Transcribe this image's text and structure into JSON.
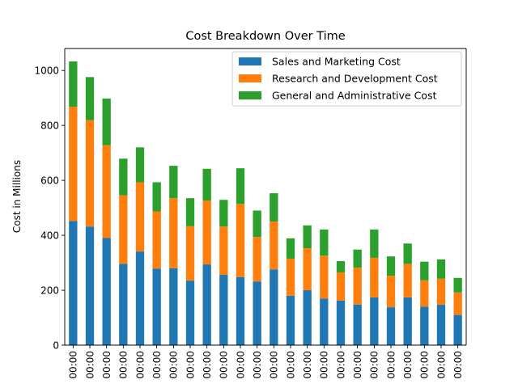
{
  "chart_data": {
    "type": "bar",
    "stacked": true,
    "title": "Cost Breakdown Over Time",
    "xlabel": "",
    "ylabel": "Cost in Millions",
    "ylim": [
      0,
      1080
    ],
    "yticks": [
      0,
      200,
      400,
      600,
      800,
      1000
    ],
    "categories": [
      "00:00",
      "00:00",
      "00:00",
      "00:00",
      "00:00",
      "00:00",
      "00:00",
      "00:00",
      "00:00",
      "00:00",
      "00:00",
      "00:00",
      "00:00",
      "00:00",
      "00:00",
      "00:00",
      "00:00",
      "00:00",
      "00:00",
      "00:00",
      "00:00",
      "00:00",
      "00:00",
      "00:00"
    ],
    "legend_position": "top-right",
    "grid": false,
    "series": [
      {
        "name": "Sales and Marketing Cost",
        "color": "#1f77b4",
        "values": [
          452,
          432,
          390,
          296,
          341,
          279,
          280,
          235,
          294,
          256,
          248,
          232,
          276,
          180,
          200,
          170,
          162,
          148,
          174,
          138,
          174,
          140,
          147,
          110
        ]
      },
      {
        "name": "Research and Development Cost",
        "color": "#ff7f0e",
        "values": [
          416,
          387,
          338,
          250,
          252,
          208,
          255,
          198,
          232,
          176,
          266,
          162,
          174,
          135,
          153,
          156,
          103,
          134,
          144,
          115,
          122,
          96,
          95,
          82
        ]
      },
      {
        "name": "General and Administrative Cost",
        "color": "#2ca02c",
        "values": [
          165,
          157,
          170,
          133,
          127,
          106,
          118,
          102,
          116,
          97,
          130,
          96,
          103,
          74,
          83,
          95,
          41,
          66,
          103,
          70,
          74,
          68,
          70,
          53
        ]
      }
    ]
  }
}
